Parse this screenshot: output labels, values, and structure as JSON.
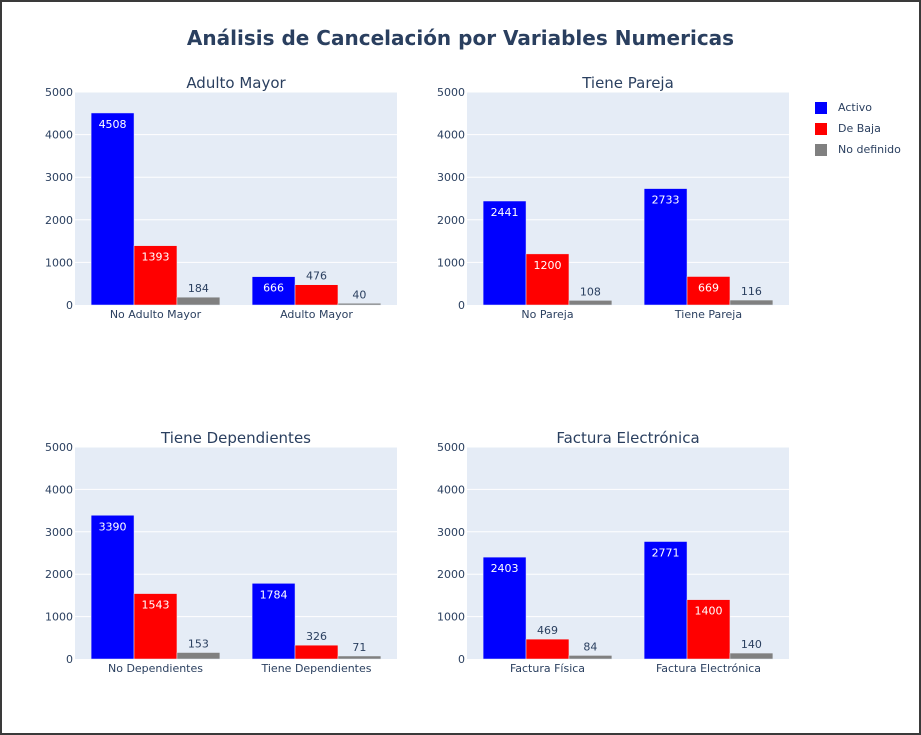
{
  "title": "Análisis de Cancelación por Variables Numericas",
  "legend": [
    {
      "name": "Activo",
      "color": "#0000ff"
    },
    {
      "name": "De Baja",
      "color": "#ff0000"
    },
    {
      "name": "No definido",
      "color": "#808080"
    }
  ],
  "chart_data": [
    {
      "type": "bar",
      "title": "Adulto Mayor",
      "categories": [
        "No Adulto Mayor",
        "Adulto Mayor"
      ],
      "series": [
        {
          "name": "Activo",
          "values": [
            4508,
            666
          ]
        },
        {
          "name": "De Baja",
          "values": [
            1393,
            476
          ]
        },
        {
          "name": "No definido",
          "values": [
            184,
            40
          ]
        }
      ],
      "ylim": [
        0,
        5000
      ],
      "yticks": [
        0,
        1000,
        2000,
        3000,
        4000,
        5000
      ]
    },
    {
      "type": "bar",
      "title": "Tiene Pareja",
      "categories": [
        "No Pareja",
        "Tiene Pareja"
      ],
      "series": [
        {
          "name": "Activo",
          "values": [
            2441,
            2733
          ]
        },
        {
          "name": "De Baja",
          "values": [
            1200,
            669
          ]
        },
        {
          "name": "No definido",
          "values": [
            108,
            116
          ]
        }
      ],
      "ylim": [
        0,
        5000
      ],
      "yticks": [
        0,
        1000,
        2000,
        3000,
        4000,
        5000
      ]
    },
    {
      "type": "bar",
      "title": "Tiene Dependientes",
      "categories": [
        "No Dependientes",
        "Tiene Dependientes"
      ],
      "series": [
        {
          "name": "Activo",
          "values": [
            3390,
            1784
          ]
        },
        {
          "name": "De Baja",
          "values": [
            1543,
            326
          ]
        },
        {
          "name": "No definido",
          "values": [
            153,
            71
          ]
        }
      ],
      "ylim": [
        0,
        5000
      ],
      "yticks": [
        0,
        1000,
        2000,
        3000,
        4000,
        5000
      ]
    },
    {
      "type": "bar",
      "title": "Factura Electrónica",
      "categories": [
        "Factura Física",
        "Factura Electrónica"
      ],
      "series": [
        {
          "name": "Activo",
          "values": [
            2403,
            2771
          ]
        },
        {
          "name": "De Baja",
          "values": [
            469,
            1400
          ]
        },
        {
          "name": "No definido",
          "values": [
            84,
            140
          ]
        }
      ],
      "ylim": [
        0,
        5000
      ],
      "yticks": [
        0,
        1000,
        2000,
        3000,
        4000,
        5000
      ]
    }
  ]
}
